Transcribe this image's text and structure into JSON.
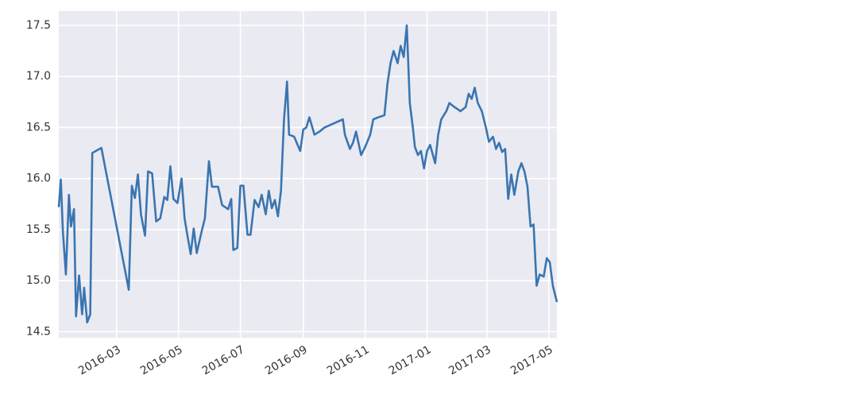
{
  "chart_data": {
    "type": "line",
    "x": [
      "2016-01-04",
      "2016-01-06",
      "2016-01-08",
      "2016-01-11",
      "2016-01-14",
      "2016-01-16",
      "2016-01-19",
      "2016-01-21",
      "2016-01-24",
      "2016-01-27",
      "2016-01-29",
      "2016-02-01",
      "2016-02-04",
      "2016-02-06",
      "2016-02-15",
      "2016-03-13",
      "2016-03-16",
      "2016-03-19",
      "2016-03-22",
      "2016-03-25",
      "2016-03-29",
      "2016-04-01",
      "2016-04-05",
      "2016-04-09",
      "2016-04-13",
      "2016-04-17",
      "2016-04-20",
      "2016-04-23",
      "2016-04-26",
      "2016-04-30",
      "2016-05-04",
      "2016-05-07",
      "2016-05-10",
      "2016-05-13",
      "2016-05-16",
      "2016-05-19",
      "2016-05-24",
      "2016-05-27",
      "2016-05-31",
      "2016-06-03",
      "2016-06-09",
      "2016-06-13",
      "2016-06-19",
      "2016-06-22",
      "2016-06-24",
      "2016-06-28",
      "2016-07-01",
      "2016-07-04",
      "2016-07-08",
      "2016-07-11",
      "2016-07-15",
      "2016-07-19",
      "2016-07-22",
      "2016-07-26",
      "2016-07-29",
      "2016-08-01",
      "2016-08-04",
      "2016-08-07",
      "2016-08-10",
      "2016-08-13",
      "2016-08-16",
      "2016-08-18",
      "2016-08-23",
      "2016-08-29",
      "2016-09-01",
      "2016-09-04",
      "2016-09-07",
      "2016-09-12",
      "2016-09-17",
      "2016-09-22",
      "2016-10-01",
      "2016-10-10",
      "2016-10-12",
      "2016-10-17",
      "2016-10-20",
      "2016-10-23",
      "2016-10-28",
      "2016-11-01",
      "2016-11-06",
      "2016-11-09",
      "2016-11-14",
      "2016-11-20",
      "2016-11-23",
      "2016-11-26",
      "2016-11-29",
      "2016-12-03",
      "2016-12-06",
      "2016-12-09",
      "2016-12-12",
      "2016-12-15",
      "2016-12-18",
      "2016-12-20",
      "2016-12-23",
      "2016-12-26",
      "2016-12-29",
      "2017-01-01",
      "2017-01-04",
      "2017-01-09",
      "2017-01-12",
      "2017-01-15",
      "2017-01-20",
      "2017-01-23",
      "2017-01-28",
      "2017-02-03",
      "2017-02-08",
      "2017-02-11",
      "2017-02-14",
      "2017-02-17",
      "2017-02-20",
      "2017-02-24",
      "2017-02-28",
      "2017-03-03",
      "2017-03-07",
      "2017-03-10",
      "2017-03-13",
      "2017-03-16",
      "2017-03-19",
      "2017-03-22",
      "2017-03-25",
      "2017-03-28",
      "2017-04-01",
      "2017-04-04",
      "2017-04-07",
      "2017-04-10",
      "2017-04-13",
      "2017-04-16",
      "2017-04-19",
      "2017-04-22",
      "2017-04-26",
      "2017-04-29",
      "2017-05-02",
      "2017-05-05",
      "2017-05-09"
    ],
    "series": [
      {
        "color": "#3a75b0",
        "values": [
          15.72,
          15.99,
          15.49,
          15.06,
          15.84,
          15.53,
          15.7,
          14.65,
          15.05,
          14.67,
          14.93,
          14.59,
          14.67,
          16.25,
          16.3,
          14.91,
          15.93,
          15.81,
          16.04,
          15.65,
          15.44,
          16.07,
          16.05,
          15.58,
          15.61,
          15.82,
          15.79,
          16.12,
          15.8,
          15.76,
          16.0,
          15.61,
          15.43,
          15.26,
          15.51,
          15.27,
          15.49,
          15.61,
          16.17,
          15.92,
          15.92,
          15.74,
          15.7,
          15.8,
          15.3,
          15.32,
          15.93,
          15.93,
          15.45,
          15.45,
          15.79,
          15.72,
          15.84,
          15.65,
          15.88,
          15.71,
          15.79,
          15.63,
          15.88,
          16.58,
          16.95,
          16.43,
          16.41,
          16.27,
          16.48,
          16.5,
          16.6,
          16.43,
          16.46,
          16.5,
          16.54,
          16.58,
          16.43,
          16.29,
          16.35,
          16.46,
          16.23,
          16.31,
          16.43,
          16.58,
          16.6,
          16.62,
          16.93,
          17.13,
          17.25,
          17.13,
          17.3,
          17.19,
          17.5,
          16.74,
          16.5,
          16.31,
          16.23,
          16.27,
          16.1,
          16.27,
          16.33,
          16.15,
          16.43,
          16.58,
          16.66,
          16.74,
          16.7,
          16.66,
          16.7,
          16.83,
          16.78,
          16.89,
          16.74,
          16.66,
          16.5,
          16.36,
          16.41,
          16.29,
          16.35,
          16.26,
          16.29,
          15.8,
          16.04,
          15.84,
          16.07,
          16.15,
          16.07,
          15.92,
          15.53,
          15.55,
          14.95,
          15.06,
          15.04,
          15.22,
          15.18,
          14.95,
          14.79
        ]
      }
    ],
    "xlim": [
      "2016-01-04",
      "2017-05-09"
    ],
    "xticks": [
      {
        "value": "2016-03-01",
        "label": "2016-03"
      },
      {
        "value": "2016-05-01",
        "label": "2016-05"
      },
      {
        "value": "2016-07-01",
        "label": "2016-07"
      },
      {
        "value": "2016-09-01",
        "label": "2016-09"
      },
      {
        "value": "2016-11-01",
        "label": "2016-11"
      },
      {
        "value": "2017-01-01",
        "label": "2017-01"
      },
      {
        "value": "2017-03-01",
        "label": "2017-03"
      },
      {
        "value": "2017-05-01",
        "label": "2017-05"
      }
    ],
    "ylim": [
      14.44,
      17.64
    ],
    "yticks": [
      14.5,
      {
        "value": 15.0,
        "label": "15.0"
      },
      15.5,
      {
        "value": 16.0,
        "label": "16.0"
      },
      16.5,
      {
        "value": 17.0,
        "label": "17.0"
      },
      17.5
    ],
    "grid": true
  }
}
